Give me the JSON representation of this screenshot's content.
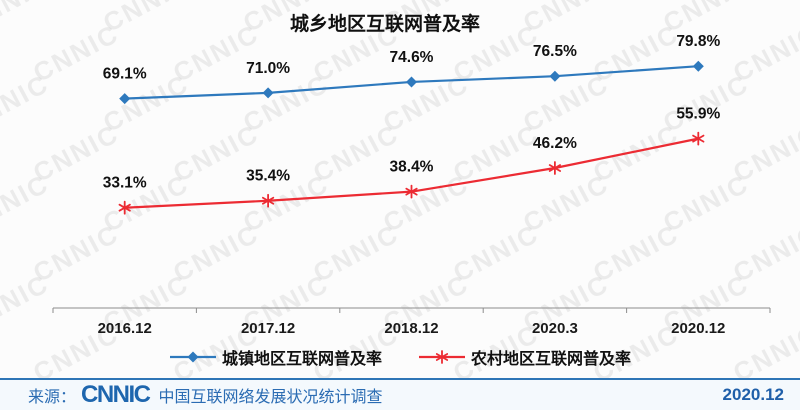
{
  "chart_data": {
    "type": "line",
    "title": "城乡地区互联网普及率",
    "categories": [
      "2016.12",
      "2017.12",
      "2018.12",
      "2020.3",
      "2020.12"
    ],
    "series": [
      {
        "name": "城镇地区互联网普及率",
        "values": [
          69.1,
          71.0,
          74.6,
          76.5,
          79.8
        ],
        "labels": [
          "69.1%",
          "71.0%",
          "74.6%",
          "76.5%",
          "79.8%"
        ],
        "color": "#2E79BD",
        "marker": "diamond"
      },
      {
        "name": "农村地区互联网普及率",
        "values": [
          33.1,
          35.4,
          38.4,
          46.2,
          55.9
        ],
        "labels": [
          "33.1%",
          "35.4%",
          "38.4%",
          "46.2%",
          "55.9%"
        ],
        "color": "#EC2B33",
        "marker": "asterisk"
      }
    ],
    "xlabel": "",
    "ylabel": "",
    "ylim": [
      0,
      100
    ],
    "grid": false,
    "legend_position": "bottom"
  },
  "watermark": {
    "text": "CNNIC"
  },
  "footer": {
    "source_prefix": "来源：",
    "logo_text": "CNNIC",
    "source_text": "中国互联网络发展状况统计调查",
    "date": "2020.12",
    "accent_color": "#2B6CB3"
  }
}
